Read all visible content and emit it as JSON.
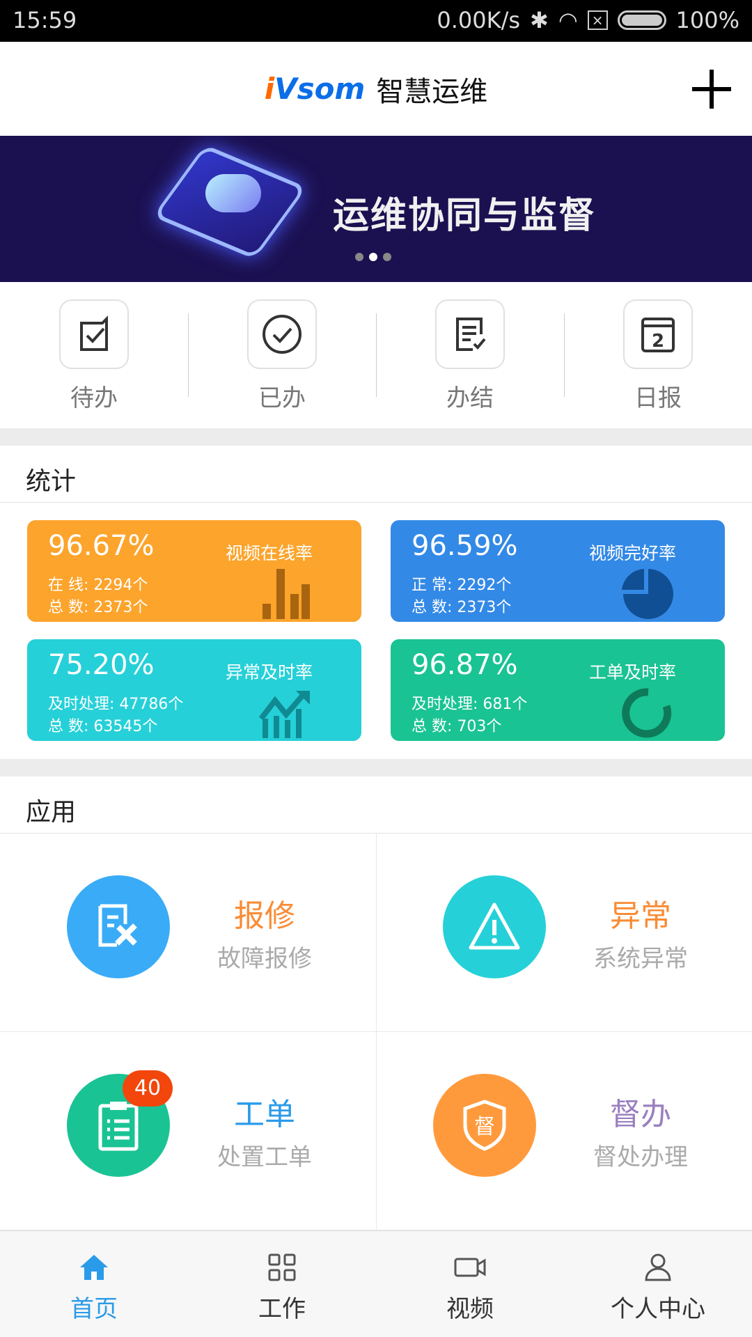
{
  "status_bar": {
    "time": "15:59",
    "speed": "0.00K/s",
    "battery": "100%"
  },
  "header": {
    "logo_i": "i",
    "logo_rest": "Vsom",
    "title": "智慧运维"
  },
  "banner": {
    "text": "运维协同与监督",
    "slides": 3,
    "active_slide": 2
  },
  "quick": [
    {
      "label": "待办",
      "icon": "checkbox-icon"
    },
    {
      "label": "已办",
      "icon": "check-circle-icon"
    },
    {
      "label": "办结",
      "icon": "document-check-icon"
    },
    {
      "label": "日报",
      "icon": "calendar-icon"
    }
  ],
  "stats": {
    "title": "统计",
    "cards": [
      {
        "pct": "96.67%",
        "name": "视频在线率",
        "l1": "在  线: 2294个",
        "l2": "总  数: 2373个",
        "color": "#fca42c",
        "icon": "bar-chart-icon"
      },
      {
        "pct": "96.59%",
        "name": "视频完好率",
        "l1": "正  常: 2292个",
        "l2": "总  数: 2373个",
        "color": "#3389e6",
        "icon": "pie-chart-icon"
      },
      {
        "pct": "75.20%",
        "name": "异常及时率",
        "l1": "及时处理: 47786个",
        "l2": "总  数: 63545个",
        "color": "#26d0d8",
        "icon": "trend-up-icon"
      },
      {
        "pct": "96.87%",
        "name": "工单及时率",
        "l1": "及时处理: 681个",
        "l2": "总  数: 703个",
        "color": "#1ac393",
        "icon": "ring-chart-icon"
      }
    ]
  },
  "apps": {
    "title": "应用",
    "items": [
      {
        "title": "报修",
        "sub": "故障报修",
        "title_color": "#fa8c35",
        "circle": "#3aabf7",
        "icon": "repair-icon"
      },
      {
        "title": "异常",
        "sub": "系统异常",
        "title_color": "#fa8c35",
        "circle": "#26d0d8",
        "icon": "warning-icon"
      },
      {
        "title": "工单",
        "sub": "处置工单",
        "title_color": "#2a9be8",
        "circle": "#1ac393",
        "icon": "clipboard-icon",
        "badge": "40"
      },
      {
        "title": "督办",
        "sub": "督处办理",
        "title_color": "#9a7fbf",
        "circle": "#ff9a3c",
        "icon": "supervise-shield-icon"
      }
    ]
  },
  "nav": [
    {
      "label": "首页",
      "icon": "home-icon",
      "active": true
    },
    {
      "label": "工作",
      "icon": "grid-icon"
    },
    {
      "label": "视频",
      "icon": "video-icon"
    },
    {
      "label": "个人中心",
      "icon": "person-icon"
    }
  ]
}
